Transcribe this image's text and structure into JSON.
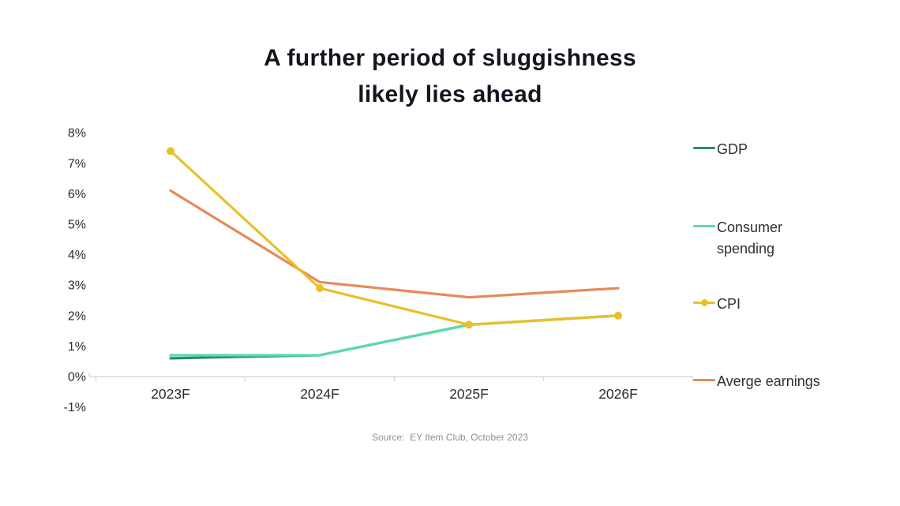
{
  "title": {
    "text": "A further period of sluggishness\nlikely lies ahead"
  },
  "source": {
    "text": "Source:  EY Item Club, October 2023"
  },
  "chart_data": {
    "type": "line",
    "title": "A further period of sluggishness likely lies ahead",
    "categories": [
      "2023F",
      "2024F",
      "2025F",
      "2026F"
    ],
    "series": [
      {
        "name": "GDP",
        "legend_lines": [
          "GDP"
        ],
        "color": "#2E8B70",
        "values": [
          0.6,
          0.7,
          1.7,
          2.0
        ],
        "marker": false,
        "z": 1
      },
      {
        "name": "Consumer spending",
        "legend_lines": [
          "Consumer",
          "spending"
        ],
        "color": "#5CDBA7",
        "values": [
          0.7,
          0.7,
          1.7,
          2.0
        ],
        "marker": false,
        "z": 2
      },
      {
        "name": "CPI",
        "legend_lines": [
          "CPI"
        ],
        "color": "#EAC029",
        "values": [
          7.4,
          2.9,
          1.7,
          2.0
        ],
        "marker": true,
        "z": 4
      },
      {
        "name": "Averge earnings",
        "legend_lines": [
          "Averge earnings"
        ],
        "color": "#E78A57",
        "values": [
          6.1,
          3.1,
          2.6,
          2.9
        ],
        "marker": false,
        "z": 3
      }
    ],
    "ylim": [
      -1,
      8
    ],
    "ytick_labels": [
      "8%",
      "7%",
      "6%",
      "5%",
      "4%",
      "3%",
      "2%",
      "1%",
      "0%",
      "-1%"
    ],
    "xlabel": "",
    "ylabel": "",
    "grid": false,
    "legend_position": "right"
  },
  "colors": {
    "background": "#ffffff",
    "axis": "#d9d9d9",
    "tick_text": "#2b2b33",
    "title_text": "#17141f",
    "legend_text": "#2f2f38",
    "source_text": "#8e8e8e"
  }
}
